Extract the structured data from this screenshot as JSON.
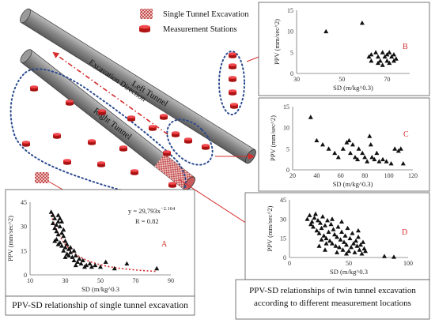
{
  "legend": {
    "items": [
      {
        "label": "Single Tunnel Excavation"
      },
      {
        "label": "Measurement Stations"
      }
    ]
  },
  "diagram": {
    "left_tunnel_label": "Left Tunnel",
    "right_tunnel_label": "Right Tunnel",
    "direction_label": "Excavation Direction"
  },
  "captions": {
    "single": "PPV-SD relationship of single tunnel excavation",
    "twin_line1": "PPV-SD relationships of twin tunnel excavation",
    "twin_line2": "according to different measurement locations"
  },
  "colors": {
    "station_red": "#e01c24",
    "arrow_red": "#d62c2c",
    "dotted_blue": "#2b4a8f",
    "tunnel_gray": "#8c8c8c"
  },
  "chart_data": [
    {
      "id": "A",
      "type": "scatter",
      "panel_label": "A",
      "xlabel": "SD (m/kg^0.3",
      "ylabel": "PPV (mm/sec^2)",
      "xlim": [
        10,
        90
      ],
      "ylim": [
        0,
        45
      ],
      "xticks": [
        10,
        30,
        50,
        70,
        90
      ],
      "yticks": [
        0,
        15,
        30,
        45
      ],
      "tick_labels_x": [
        "10",
        "30",
        "50",
        "70",
        "90"
      ],
      "tick_labels_y": [
        "0",
        "15",
        "30",
        "45"
      ],
      "annotation": {
        "equation": "y = 29,793x",
        "exponent": "−2.164",
        "r_text": "R = 0.82"
      },
      "trendline": {
        "form": "power",
        "a": 29793,
        "b": -2.164,
        "x_range": [
          22,
          82
        ]
      },
      "points": [
        [
          22,
          39
        ],
        [
          23,
          37
        ],
        [
          23,
          32
        ],
        [
          24,
          29
        ],
        [
          24,
          35
        ],
        [
          25,
          27
        ],
        [
          25,
          31
        ],
        [
          25,
          22
        ],
        [
          26,
          25
        ],
        [
          26,
          33
        ],
        [
          27,
          30
        ],
        [
          27,
          20
        ],
        [
          28,
          18
        ],
        [
          28,
          26
        ],
        [
          29,
          24
        ],
        [
          29,
          15
        ],
        [
          30,
          17
        ],
        [
          30,
          21
        ],
        [
          31,
          13
        ],
        [
          31,
          19
        ],
        [
          32,
          12
        ],
        [
          32,
          16
        ],
        [
          33,
          14
        ],
        [
          34,
          11
        ],
        [
          35,
          9
        ],
        [
          36,
          12
        ],
        [
          37,
          8
        ],
        [
          38,
          10
        ],
        [
          39,
          7
        ],
        [
          40,
          9
        ],
        [
          42,
          6
        ],
        [
          44,
          7
        ],
        [
          45,
          5
        ],
        [
          47,
          6
        ],
        [
          50,
          5
        ],
        [
          53,
          8
        ],
        [
          58,
          4
        ],
        [
          65,
          7
        ],
        [
          82,
          4
        ],
        [
          26,
          37
        ],
        [
          27,
          35
        ],
        [
          28,
          33
        ],
        [
          29,
          28
        ],
        [
          33,
          17
        ],
        [
          35,
          15
        ],
        [
          24,
          21
        ],
        [
          26,
          19
        ],
        [
          30,
          11
        ],
        [
          36,
          6
        ],
        [
          41,
          5
        ]
      ]
    },
    {
      "id": "B",
      "type": "scatter",
      "panel_label": "B",
      "xlabel": "SD (m/kg^0.3)",
      "ylabel": "PPV (mm/sec^2)",
      "xlim": [
        30,
        80
      ],
      "ylim": [
        0,
        15
      ],
      "xticks": [
        30,
        50,
        70
      ],
      "yticks": [
        0,
        5,
        10,
        15
      ],
      "tick_labels_x": [
        "30",
        "50",
        "70"
      ],
      "tick_labels_y": [
        "0",
        "5",
        "10",
        "15"
      ],
      "points": [
        [
          43,
          10
        ],
        [
          59,
          12
        ],
        [
          62,
          4
        ],
        [
          63,
          3
        ],
        [
          65,
          5
        ],
        [
          66,
          4
        ],
        [
          67,
          3
        ],
        [
          68,
          5
        ],
        [
          69,
          4
        ],
        [
          70,
          3
        ],
        [
          71,
          5
        ],
        [
          72,
          4
        ],
        [
          73,
          3
        ],
        [
          63,
          4.5
        ],
        [
          66,
          2.5
        ],
        [
          70,
          4.5
        ],
        [
          71,
          2.5
        ],
        [
          68,
          2
        ],
        [
          73,
          4.5
        ],
        [
          74,
          3.5
        ]
      ]
    },
    {
      "id": "C",
      "type": "scatter",
      "panel_label": "C",
      "xlabel": "SD (m/kg^0.3)",
      "ylabel": "PPV (mm/sec^2)",
      "xlim": [
        20,
        120
      ],
      "ylim": [
        0,
        15
      ],
      "xticks": [
        20,
        40,
        60,
        80,
        100,
        120
      ],
      "yticks": [
        0,
        5,
        10,
        15
      ],
      "tick_labels_x": [
        "20",
        "40",
        "60",
        "80",
        "100",
        "120"
      ],
      "tick_labels_y": [
        "0",
        "5",
        "10",
        "15"
      ],
      "points": [
        [
          35,
          12.5
        ],
        [
          40,
          7
        ],
        [
          45,
          6
        ],
        [
          50,
          5
        ],
        [
          55,
          4
        ],
        [
          58,
          3
        ],
        [
          62,
          5
        ],
        [
          65,
          6.5
        ],
        [
          67,
          7
        ],
        [
          68,
          4
        ],
        [
          70,
          6
        ],
        [
          72,
          3
        ],
        [
          74,
          2.5
        ],
        [
          75,
          5
        ],
        [
          78,
          4
        ],
        [
          80,
          3
        ],
        [
          82,
          2
        ],
        [
          84,
          8
        ],
        [
          85,
          6
        ],
        [
          86,
          3
        ],
        [
          88,
          2.5
        ],
        [
          90,
          4
        ],
        [
          92,
          2
        ],
        [
          95,
          2.5
        ],
        [
          98,
          2
        ],
        [
          102,
          1.5
        ],
        [
          105,
          5
        ],
        [
          108,
          4.5
        ],
        [
          110,
          5
        ],
        [
          112,
          1.5
        ]
      ]
    },
    {
      "id": "D",
      "type": "scatter",
      "panel_label": "D",
      "xlabel": "SD (m/kg^0.3",
      "ylabel": "PPV (mm/sec^2)",
      "xlim": [
        0,
        100
      ],
      "ylim": [
        0,
        45
      ],
      "xticks": [
        0,
        50,
        100
      ],
      "yticks": [
        0,
        15,
        30,
        45
      ],
      "tick_labels_x": [
        "0",
        "50",
        "100"
      ],
      "tick_labels_y": [
        "0",
        "15",
        "30",
        "45"
      ],
      "points": [
        [
          15,
          30
        ],
        [
          17,
          33
        ],
        [
          18,
          26
        ],
        [
          19,
          28
        ],
        [
          20,
          24
        ],
        [
          21,
          31
        ],
        [
          22,
          34
        ],
        [
          23,
          21
        ],
        [
          24,
          29
        ],
        [
          25,
          19
        ],
        [
          26,
          27
        ],
        [
          27,
          23
        ],
        [
          28,
          32
        ],
        [
          29,
          17
        ],
        [
          30,
          25
        ],
        [
          31,
          15
        ],
        [
          32,
          29
        ],
        [
          33,
          20
        ],
        [
          34,
          13
        ],
        [
          35,
          26
        ],
        [
          36,
          11
        ],
        [
          37,
          22
        ],
        [
          38,
          18
        ],
        [
          39,
          9
        ],
        [
          40,
          16
        ],
        [
          41,
          24
        ],
        [
          42,
          8
        ],
        [
          43,
          14
        ],
        [
          44,
          20
        ],
        [
          45,
          6
        ],
        [
          46,
          12
        ],
        [
          47,
          17
        ],
        [
          48,
          10
        ],
        [
          49,
          23
        ],
        [
          50,
          5
        ],
        [
          51,
          15
        ],
        [
          52,
          8
        ],
        [
          53,
          19
        ],
        [
          54,
          11
        ],
        [
          55,
          4
        ],
        [
          56,
          13
        ],
        [
          57,
          9
        ],
        [
          58,
          16
        ],
        [
          59,
          6
        ],
        [
          60,
          10
        ],
        [
          61,
          3
        ],
        [
          62,
          12
        ],
        [
          63,
          7
        ],
        [
          64,
          5
        ],
        [
          58,
          21
        ],
        [
          27,
          14
        ],
        [
          31,
          11
        ],
        [
          36,
          30
        ],
        [
          44,
          28
        ],
        [
          25,
          9
        ],
        [
          30,
          6
        ],
        [
          40,
          4
        ],
        [
          48,
          3
        ],
        [
          80,
          1
        ],
        [
          88,
          0.5
        ]
      ]
    }
  ]
}
